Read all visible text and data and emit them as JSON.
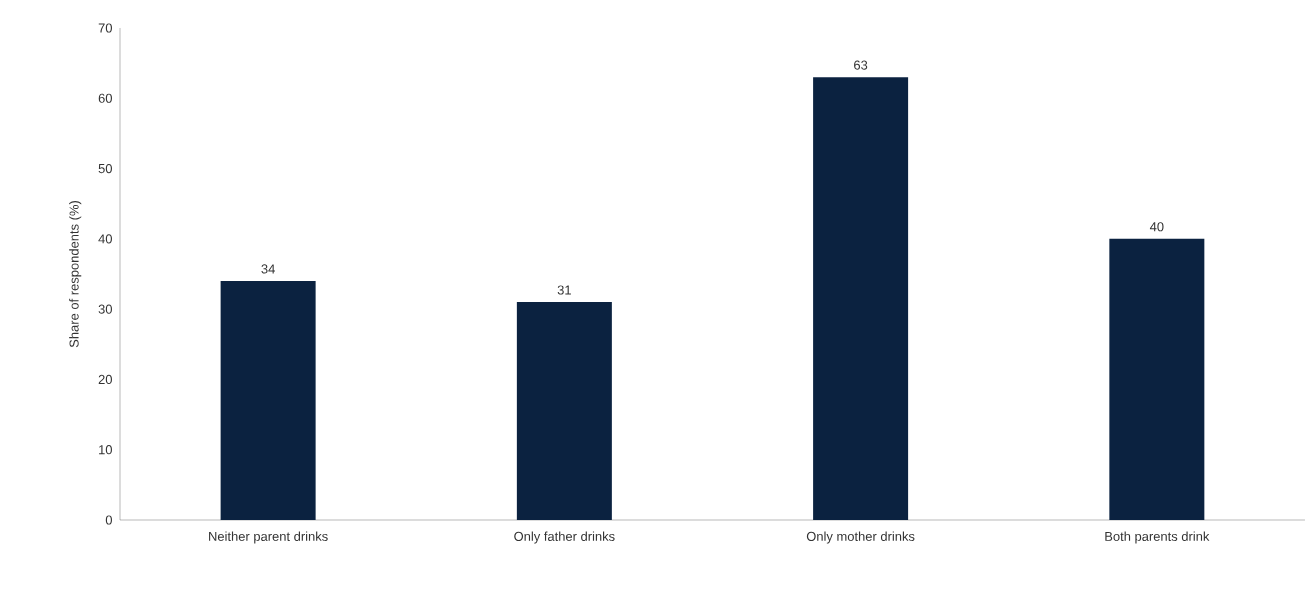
{
  "chart_data": {
    "type": "bar",
    "ylabel": "Share of respondents (%)",
    "categories": [
      "Neither parent drinks",
      "Only father drinks",
      "Only mother drinks",
      "Both parents drink"
    ],
    "values": [
      34,
      31,
      63,
      40
    ],
    "color": "#0b2240",
    "ylim": [
      0,
      70
    ],
    "yticks": [
      0,
      10,
      20,
      30,
      40,
      50,
      60,
      70
    ],
    "data_labels": true,
    "grid": false
  }
}
